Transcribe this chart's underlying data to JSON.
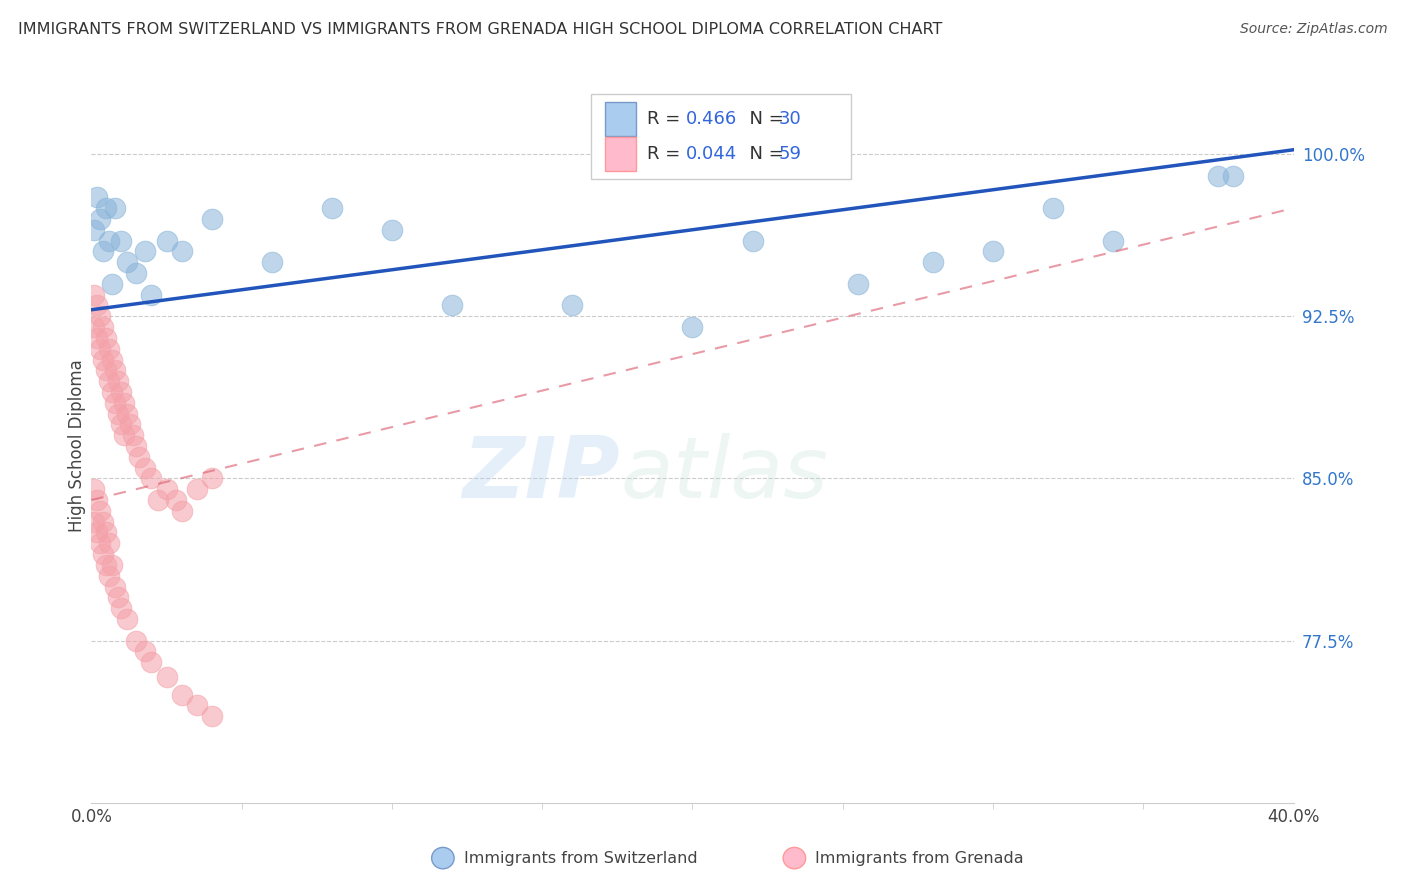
{
  "title": "IMMIGRANTS FROM SWITZERLAND VS IMMIGRANTS FROM GRENADA HIGH SCHOOL DIPLOMA CORRELATION CHART",
  "source": "Source: ZipAtlas.com",
  "ylabel": "High School Diploma",
  "ylabel_right_labels": [
    "100.0%",
    "92.5%",
    "85.0%",
    "77.5%"
  ],
  "ylabel_right_values": [
    1.0,
    0.925,
    0.85,
    0.775
  ],
  "legend_label1": "Immigrants from Switzerland",
  "legend_label2": "Immigrants from Grenada",
  "blue_color": "#89B4D9",
  "pink_color": "#F4A0A8",
  "trend_blue": "#2255BB",
  "trend_pink": "#DD6677",
  "watermark_zip": "ZIP",
  "watermark_atlas": "atlas",
  "swiss_x": [
    0.001,
    0.002,
    0.003,
    0.004,
    0.005,
    0.006,
    0.007,
    0.008,
    0.01,
    0.012,
    0.015,
    0.018,
    0.02,
    0.025,
    0.03,
    0.04,
    0.06,
    0.08,
    0.1,
    0.12,
    0.16,
    0.2,
    0.22,
    0.255,
    0.28,
    0.3,
    0.32,
    0.34,
    0.375,
    0.38
  ],
  "swiss_y": [
    0.965,
    0.98,
    0.97,
    0.955,
    0.975,
    0.96,
    0.94,
    0.975,
    0.96,
    0.95,
    0.945,
    0.955,
    0.935,
    0.96,
    0.955,
    0.97,
    0.95,
    0.975,
    0.965,
    0.93,
    0.93,
    0.92,
    0.96,
    0.94,
    0.95,
    0.955,
    0.975,
    0.96,
    0.99,
    0.99
  ],
  "grenada_x": [
    0.001,
    0.001,
    0.002,
    0.002,
    0.003,
    0.003,
    0.004,
    0.004,
    0.005,
    0.005,
    0.006,
    0.006,
    0.007,
    0.007,
    0.008,
    0.008,
    0.009,
    0.009,
    0.01,
    0.01,
    0.011,
    0.011,
    0.012,
    0.013,
    0.014,
    0.015,
    0.016,
    0.018,
    0.02,
    0.022,
    0.025,
    0.028,
    0.03,
    0.035,
    0.04,
    0.001,
    0.001,
    0.002,
    0.002,
    0.003,
    0.003,
    0.004,
    0.004,
    0.005,
    0.005,
    0.006,
    0.006,
    0.007,
    0.008,
    0.009,
    0.01,
    0.012,
    0.015,
    0.018,
    0.02,
    0.025,
    0.03,
    0.035,
    0.04
  ],
  "grenada_y": [
    0.935,
    0.92,
    0.93,
    0.915,
    0.925,
    0.91,
    0.92,
    0.905,
    0.915,
    0.9,
    0.91,
    0.895,
    0.905,
    0.89,
    0.9,
    0.885,
    0.895,
    0.88,
    0.89,
    0.875,
    0.885,
    0.87,
    0.88,
    0.875,
    0.87,
    0.865,
    0.86,
    0.855,
    0.85,
    0.84,
    0.845,
    0.84,
    0.835,
    0.845,
    0.85,
    0.845,
    0.83,
    0.84,
    0.825,
    0.835,
    0.82,
    0.83,
    0.815,
    0.825,
    0.81,
    0.82,
    0.805,
    0.81,
    0.8,
    0.795,
    0.79,
    0.785,
    0.775,
    0.77,
    0.765,
    0.758,
    0.75,
    0.745,
    0.74
  ],
  "xlim": [
    0.0,
    0.4
  ],
  "ylim": [
    0.7,
    1.03
  ]
}
